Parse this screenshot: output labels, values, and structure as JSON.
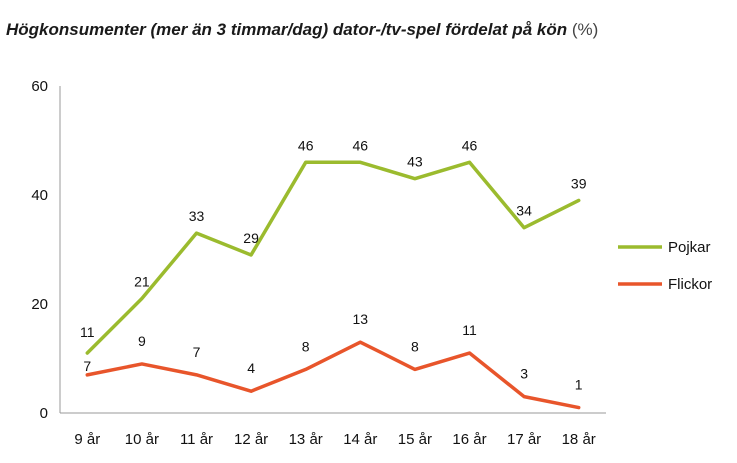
{
  "chart_data": {
    "type": "line",
    "title": "Högkonsumenter (mer än 3 timmar/dag) dator-/tv-spel fördelat på kön",
    "title_unit": "(%)",
    "categories": [
      "9 år",
      "10 år",
      "11 år",
      "12 år",
      "13 år",
      "14 år",
      "15 år",
      "16 år",
      "17 år",
      "18 år"
    ],
    "series": [
      {
        "name": "Pojkar",
        "color": "#9bbb2e",
        "values": [
          11,
          21,
          33,
          29,
          46,
          46,
          43,
          46,
          34,
          39
        ]
      },
      {
        "name": "Flickor",
        "color": "#e8552b",
        "values": [
          7,
          9,
          7,
          4,
          8,
          13,
          8,
          11,
          3,
          1
        ]
      }
    ],
    "ylim": [
      0,
      60
    ],
    "yticks": [
      0,
      20,
      40,
      60
    ],
    "grid": false,
    "legend": "right",
    "data_labels": true
  }
}
